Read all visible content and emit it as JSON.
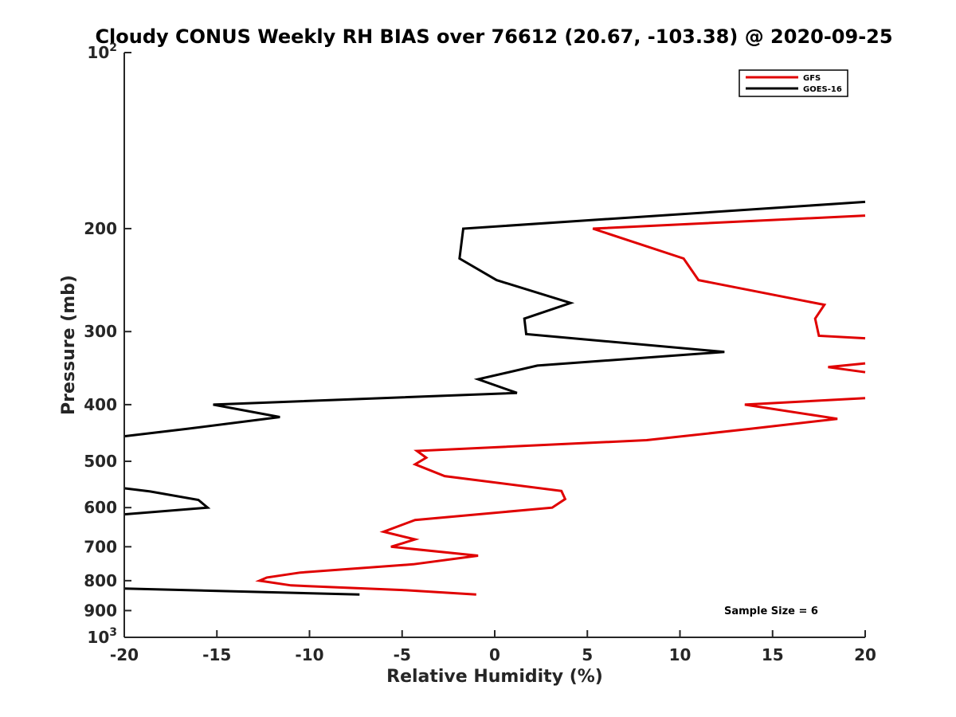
{
  "chart_data": {
    "type": "line",
    "title": "Cloudy CONUS Weekly RH BIAS over 76612 (20.67, -103.38) @ 2020-09-25",
    "xlabel": "Relative Humidity (%)",
    "ylabel": "Pressure (mb)",
    "xlim": [
      -20,
      20
    ],
    "ylim": [
      100,
      1000
    ],
    "yscale": "log",
    "yreverse": true,
    "grid": false,
    "legend_position": "top-right",
    "x_ticks": [
      {
        "value": -20,
        "label": "-20"
      },
      {
        "value": -15,
        "label": "-15"
      },
      {
        "value": -10,
        "label": "-10"
      },
      {
        "value": -5,
        "label": "-5"
      },
      {
        "value": 0,
        "label": "0"
      },
      {
        "value": 5,
        "label": "5"
      },
      {
        "value": 10,
        "label": "10"
      },
      {
        "value": 15,
        "label": "15"
      },
      {
        "value": 20,
        "label": "20"
      }
    ],
    "y_ticks": [
      {
        "value": 100,
        "base": "10",
        "exp": "2"
      },
      {
        "value": 200,
        "label": "200"
      },
      {
        "value": 300,
        "label": "300"
      },
      {
        "value": 400,
        "label": "400"
      },
      {
        "value": 500,
        "label": "500"
      },
      {
        "value": 600,
        "label": "600"
      },
      {
        "value": 700,
        "label": "700"
      },
      {
        "value": 800,
        "label": "800"
      },
      {
        "value": 900,
        "label": "900"
      },
      {
        "value": 1000,
        "base": "10",
        "exp": "3"
      }
    ],
    "series": [
      {
        "name": "GFS",
        "color": "#e00000",
        "points": [
          [
            20.0,
            190
          ],
          [
            5.3,
            200
          ],
          [
            10.2,
            225
          ],
          [
            11.0,
            245
          ],
          [
            17.8,
            270
          ],
          [
            17.3,
            285
          ],
          [
            17.5,
            305
          ],
          [
            20.0,
            308
          ],
          null,
          [
            20.0,
            340
          ],
          [
            18.0,
            345
          ],
          [
            20.0,
            352
          ],
          null,
          [
            20.0,
            390
          ],
          [
            13.5,
            400
          ],
          [
            18.5,
            423
          ],
          [
            13.8,
            440
          ],
          [
            8.2,
            460
          ],
          [
            -4.2,
            480
          ],
          [
            -3.7,
            493
          ],
          [
            -4.3,
            506
          ],
          [
            -2.7,
            530
          ],
          [
            3.6,
            562
          ],
          [
            3.8,
            580
          ],
          [
            3.1,
            600
          ],
          [
            -4.3,
            630
          ],
          [
            -6.0,
            660
          ],
          [
            -4.3,
            680
          ],
          [
            -5.6,
            700
          ],
          [
            -0.9,
            725
          ],
          [
            -4.4,
            750
          ],
          [
            -10.5,
            775
          ],
          [
            -12.3,
            790
          ],
          [
            -12.7,
            800
          ],
          [
            -11.0,
            815
          ],
          [
            -5.0,
            830
          ],
          [
            -1.0,
            845
          ]
        ]
      },
      {
        "name": "GOES-16",
        "color": "#000000",
        "points": [
          [
            20.0,
            180
          ],
          [
            -1.7,
            200
          ],
          [
            -1.9,
            225
          ],
          [
            0.1,
            245
          ],
          [
            4.1,
            268
          ],
          [
            1.6,
            285
          ],
          [
            1.7,
            303
          ],
          [
            12.4,
            325
          ],
          [
            2.3,
            343
          ],
          [
            -0.9,
            362
          ],
          [
            1.2,
            382
          ],
          [
            -15.2,
            400
          ],
          [
            -11.6,
            420
          ],
          [
            -16.6,
            440
          ],
          [
            -20.0,
            453
          ],
          null,
          [
            -20.0,
            556
          ],
          [
            -18.6,
            563
          ],
          [
            -16.0,
            582
          ],
          [
            -15.5,
            600
          ],
          [
            -20.0,
            616
          ],
          null,
          [
            -20.0,
            825
          ],
          [
            -7.3,
            845
          ]
        ]
      }
    ],
    "legend": [
      "GFS",
      "GOES-16"
    ],
    "annotations": [
      {
        "text": "Sample Size = 6"
      }
    ]
  }
}
